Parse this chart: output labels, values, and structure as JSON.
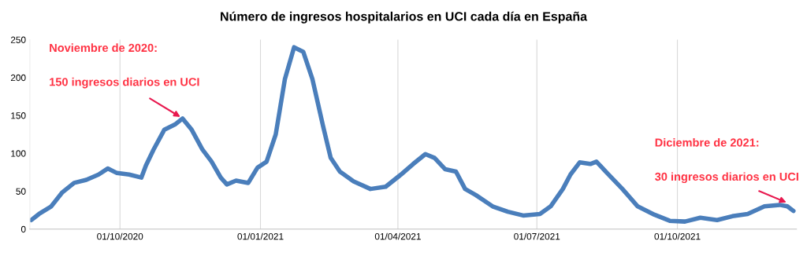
{
  "chart_data": {
    "type": "line",
    "title": "Número de ingresos hospitalarios en UCI cada día en España",
    "x": [
      "2020-08-04",
      "2020-08-09",
      "2020-08-17",
      "2020-08-24",
      "2020-09-01",
      "2020-09-09",
      "2020-09-17",
      "2020-09-23",
      "2020-09-29",
      "2020-10-07",
      "2020-10-15",
      "2020-10-18",
      "2020-10-23",
      "2020-10-30",
      "2020-11-06",
      "2020-11-11",
      "2020-11-17",
      "2020-11-24",
      "2020-11-30",
      "2020-12-06",
      "2020-12-10",
      "2020-12-16",
      "2020-12-24",
      "2020-12-30",
      "2021-01-05",
      "2021-01-11",
      "2021-01-17",
      "2021-01-23",
      "2021-01-29",
      "2021-02-04",
      "2021-02-11",
      "2021-02-16",
      "2021-02-22",
      "2021-03-03",
      "2021-03-14",
      "2021-03-24",
      "2021-04-03",
      "2021-04-11",
      "2021-04-19",
      "2021-04-25",
      "2021-05-02",
      "2021-05-09",
      "2021-05-15",
      "2021-05-22",
      "2021-06-02",
      "2021-06-12",
      "2021-06-22",
      "2021-07-03",
      "2021-07-10",
      "2021-07-18",
      "2021-07-23",
      "2021-07-29",
      "2021-08-05",
      "2021-08-09",
      "2021-08-16",
      "2021-08-26",
      "2021-09-05",
      "2021-09-16",
      "2021-09-26",
      "2021-10-06",
      "2021-10-16",
      "2021-10-27",
      "2021-11-06",
      "2021-11-16",
      "2021-11-27",
      "2021-12-07",
      "2021-12-12",
      "2021-12-16"
    ],
    "series": [
      {
        "color": "#4a7ebb",
        "values": [
          12,
          20,
          30,
          48,
          61,
          65,
          72,
          80,
          74,
          72,
          68,
          84,
          105,
          131,
          138,
          146,
          131,
          105,
          89,
          68,
          59,
          64,
          61,
          81,
          89,
          125,
          198,
          240,
          234,
          198,
          136,
          94,
          76,
          63,
          53,
          56,
          72,
          86,
          99,
          94,
          79,
          76,
          53,
          45,
          30,
          23,
          18,
          20,
          30,
          53,
          72,
          88,
          86,
          89,
          74,
          53,
          30,
          19,
          11,
          10,
          15,
          12,
          17,
          20,
          30,
          32,
          30,
          24
        ]
      }
    ],
    "xlim": [
      "2020-08-03",
      "2021-12-18"
    ],
    "xticks": [
      {
        "value": "2020-10-01",
        "label": "01/10/2020"
      },
      {
        "value": "2021-01-01",
        "label": "01/01/2021"
      },
      {
        "value": "2021-04-01",
        "label": "01/04/2021"
      },
      {
        "value": "2021-07-01",
        "label": "01/07/2021"
      },
      {
        "value": "2021-10-01",
        "label": "01/10/2021"
      }
    ],
    "ylim": [
      0,
      250
    ],
    "yticks": [
      0,
      50,
      100,
      150,
      200,
      250
    ],
    "grid": "x",
    "line_style": "solid",
    "marker": "none",
    "annotations": [
      "Noviembre de 2020:",
      {
        "text": "150 ingresos diarios en UCI",
        "x": "2020-11-12",
        "y": 145
      },
      "Diciembre de 2021:",
      {
        "text": "30 ingresos diarios en UCI",
        "x": "2021-12-14",
        "y": 33
      }
    ]
  }
}
